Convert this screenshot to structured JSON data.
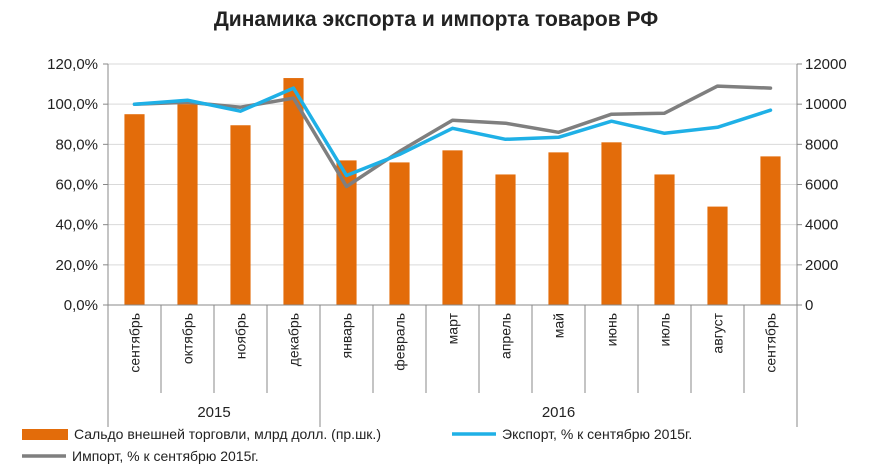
{
  "chart_data": {
    "type": "bar+line",
    "title": "Динамика экспорта и импорта товаров РФ",
    "categories": [
      "сентябрь",
      "октябрь",
      "ноябрь",
      "декабрь",
      "январь",
      "февраль",
      "март",
      "апрель",
      "май",
      "июнь",
      "июль",
      "август",
      "сентябрь"
    ],
    "year_groups": [
      {
        "label": "2015",
        "start": 0,
        "end": 3
      },
      {
        "label": "2016",
        "start": 4,
        "end": 12
      }
    ],
    "left_axis": {
      "min": 0,
      "max": 120,
      "step": 20,
      "tick_labels": [
        "0,0%",
        "20,0%",
        "40,0%",
        "60,0%",
        "80,0%",
        "100,0%",
        "120,0%"
      ]
    },
    "right_axis": {
      "min": 0,
      "max": 12000,
      "step": 2000,
      "tick_labels": [
        "0",
        "2000",
        "4000",
        "6000",
        "8000",
        "10000",
        "12000"
      ]
    },
    "series": [
      {
        "name": "Сальдо внешней торговли, млрд долл. (пр.шк.)",
        "type": "bar",
        "axis": "right",
        "color": "#E36C0A",
        "values": [
          9500,
          10000,
          8950,
          11300,
          7200,
          7100,
          7700,
          6500,
          7600,
          8100,
          6500,
          4900,
          7400
        ]
      },
      {
        "name": "Экспорт, % к сентябрю 2015г.",
        "type": "line",
        "axis": "left",
        "color": "#1FB0E6",
        "values": [
          100.0,
          102.0,
          96.5,
          108.0,
          64.5,
          75.0,
          88.0,
          82.5,
          83.5,
          91.5,
          85.5,
          88.5,
          97.0
        ]
      },
      {
        "name": "Импорт, % к сентябрю 2015г.",
        "type": "line",
        "axis": "left",
        "color": "#7F7F7F",
        "values": [
          100.0,
          101.0,
          98.5,
          103.0,
          59.0,
          76.5,
          92.0,
          90.5,
          86.0,
          95.0,
          95.5,
          109.0,
          108.0
        ]
      }
    ]
  },
  "legend": {
    "balance": "Сальдо внешней торговли, млрд долл. (пр.шк.)",
    "export": "Экспорт, % к сентябрю 2015г.",
    "import": "Импорт, % к сентябрю 2015г."
  }
}
